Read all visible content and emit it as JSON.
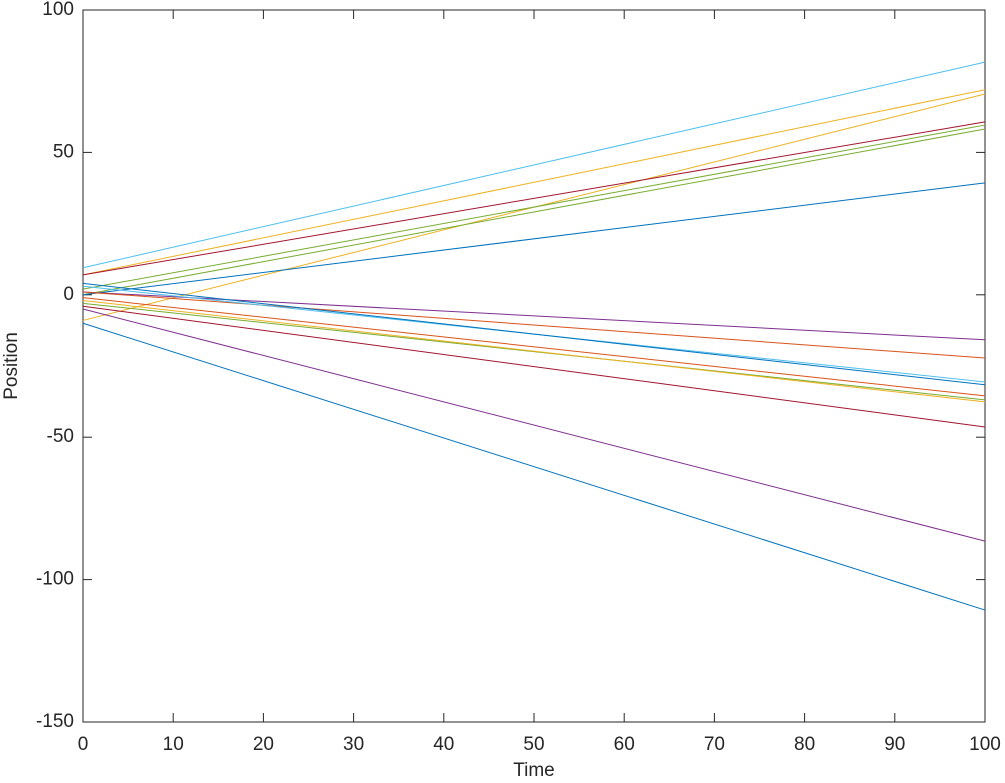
{
  "chart_data": {
    "type": "line",
    "xlabel": "Time",
    "ylabel": "Position",
    "x": [
      0,
      100
    ],
    "xlim": [
      0,
      100
    ],
    "xticks": [
      0,
      10,
      20,
      30,
      40,
      50,
      60,
      70,
      80,
      90,
      100
    ],
    "ylim": [
      -150,
      100
    ],
    "yticks": [
      -150,
      -100,
      -50,
      0,
      50,
      100
    ],
    "grid": false,
    "series": [
      {
        "color": "#4dbeee",
        "values": [
          9.5,
          81.7
        ]
      },
      {
        "color": "#edb120",
        "values": [
          7,
          72
        ]
      },
      {
        "color": "#edb120",
        "values": [
          -9,
          70.5
        ]
      },
      {
        "color": "#a2142f",
        "values": [
          7,
          60.7
        ]
      },
      {
        "color": "#77ac30",
        "values": [
          2,
          59.6
        ]
      },
      {
        "color": "#77ac30",
        "values": [
          0,
          58.2
        ]
      },
      {
        "color": "#0072bd",
        "values": [
          0,
          39.3
        ]
      },
      {
        "color": "#7e2f8e",
        "values": [
          1,
          -15.8
        ]
      },
      {
        "color": "#d95319",
        "values": [
          1,
          -22.2
        ]
      },
      {
        "color": "#4dbeee",
        "values": [
          3,
          -30.6
        ]
      },
      {
        "color": "#0072bd",
        "values": [
          4,
          -31.6
        ]
      },
      {
        "color": "#d95319",
        "values": [
          -1,
          -35.5
        ]
      },
      {
        "color": "#77ac30",
        "values": [
          -3,
          -36.9
        ]
      },
      {
        "color": "#edb120",
        "values": [
          -2,
          -37.6
        ]
      },
      {
        "color": "#a2142f",
        "values": [
          -4,
          -46.4
        ]
      },
      {
        "color": "#7e2f8e",
        "values": [
          -5,
          -86.5
        ]
      },
      {
        "color": "#0072bd",
        "values": [
          -10,
          -110.7
        ]
      }
    ]
  }
}
